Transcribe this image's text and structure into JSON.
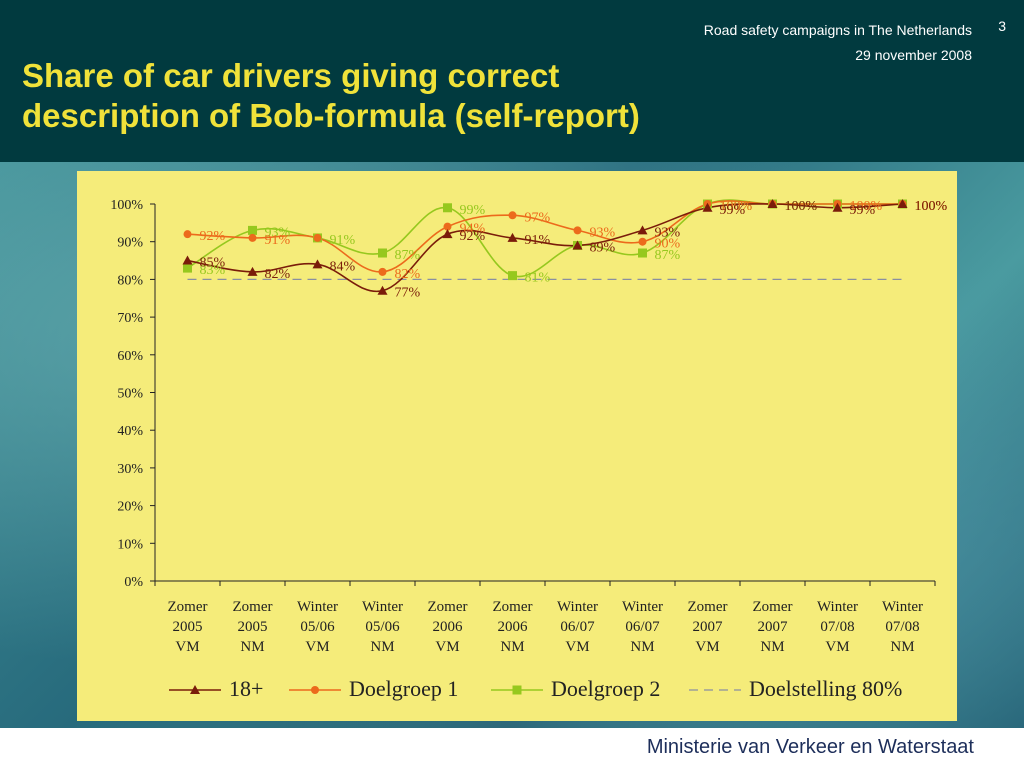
{
  "header": {
    "presentation": "Road safety campaigns in The Netherlands",
    "date": "29 november 2008",
    "page_number": "3"
  },
  "title_line1": "Share of car drivers giving correct",
  "title_line2": "description of Bob-formula (self-report)",
  "footer": {
    "ministry": "Ministerie van Verkeer en Waterstaat"
  },
  "colors": {
    "series_18plus": "#7a1c0a",
    "series_doelgroep1": "#ec6a1c",
    "series_doelgroep2": "#96c81e",
    "target": "#8a8fa0",
    "panel": "#f5ec7a",
    "title": "#f0e23a"
  },
  "chart_data": {
    "type": "line",
    "title": "",
    "xlabel": "",
    "ylabel": "",
    "ylim": [
      0,
      100
    ],
    "y_ticks": [
      "0%",
      "10%",
      "20%",
      "30%",
      "40%",
      "50%",
      "60%",
      "70%",
      "80%",
      "90%",
      "100%"
    ],
    "categories": [
      [
        "Zomer",
        "2005",
        "VM"
      ],
      [
        "Zomer",
        "2005",
        "NM"
      ],
      [
        "Winter",
        "05/06",
        "VM"
      ],
      [
        "Winter",
        "05/06",
        "NM"
      ],
      [
        "Zomer",
        "2006",
        "VM"
      ],
      [
        "Zomer",
        "2006",
        "NM"
      ],
      [
        "Winter",
        "06/07",
        "VM"
      ],
      [
        "Winter",
        "06/07",
        "NM"
      ],
      [
        "Zomer",
        "2007",
        "VM"
      ],
      [
        "Zomer",
        "2007",
        "NM"
      ],
      [
        "Winter",
        "07/08",
        "VM"
      ],
      [
        "Winter",
        "07/08",
        "NM"
      ]
    ],
    "series": [
      {
        "name": "18+",
        "marker": "triangle",
        "color": "#7a1c0a",
        "values": [
          85,
          82,
          84,
          77,
          92,
          91,
          89,
          93,
          99,
          100,
          99,
          100
        ],
        "labels": [
          "85%",
          "82%",
          "84%",
          "77%",
          "92%",
          "91%",
          "89%",
          "93%",
          "99%",
          "100%",
          "99%",
          "100%"
        ]
      },
      {
        "name": "Doelgroep 1",
        "marker": "circle",
        "color": "#ec6a1c",
        "values": [
          92,
          91,
          91,
          82,
          94,
          97,
          93,
          90,
          100,
          100,
          100,
          100
        ],
        "labels": [
          "92%",
          "91%",
          "",
          "82%",
          "94%",
          "97%",
          "93%",
          "90%",
          "100%",
          "",
          "100%",
          "100%"
        ]
      },
      {
        "name": "Doelgroep 2",
        "marker": "square",
        "color": "#96c81e",
        "values": [
          83,
          93,
          91,
          87,
          99,
          81,
          89,
          87,
          100,
          100,
          100,
          100
        ],
        "labels": [
          "83%",
          "93%",
          "91%",
          "87%",
          "99%",
          "81%",
          "",
          "87%",
          "100%",
          "100%",
          "",
          "100%"
        ]
      },
      {
        "name": "Doelstelling 80%",
        "marker": "none",
        "dashed": true,
        "color": "#8a8fa0",
        "values": [
          80,
          80,
          80,
          80,
          80,
          80,
          80,
          80,
          80,
          80,
          80,
          80
        ],
        "labels": []
      }
    ],
    "legend_position": "bottom"
  }
}
